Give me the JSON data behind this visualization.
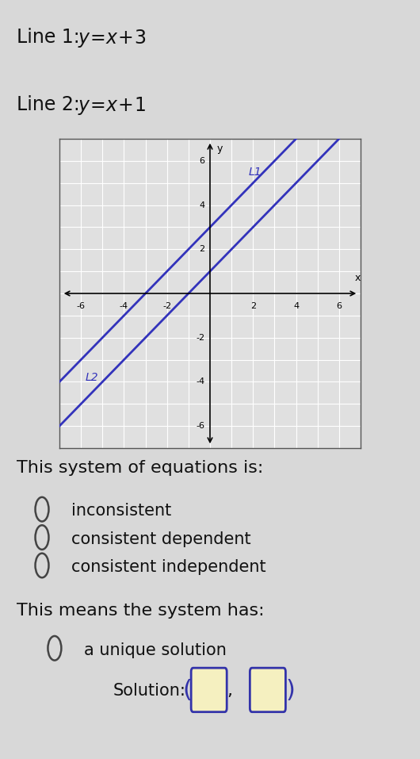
{
  "line1_text": "Line 1: ",
  "line1_eq": "y=x+3",
  "line2_text": "Line 2: ",
  "line2_eq": "y=x+1",
  "line1_slope": 1,
  "line1_intercept": 3,
  "line2_slope": 1,
  "line2_intercept": 1,
  "line_color": "#3333bb",
  "graph_label_L1": "L1",
  "graph_label_L2": "L2",
  "x_axis_label": "x",
  "y_axis_label": "y",
  "xlim": [
    -7,
    7
  ],
  "ylim": [
    -7,
    7
  ],
  "x_ticks": [
    -6,
    -4,
    -2,
    2,
    4,
    6
  ],
  "y_ticks": [
    -6,
    -4,
    -2,
    2,
    4,
    6
  ],
  "graph_bg_color": "#e0e0e0",
  "grid_color": "#ffffff",
  "system_label": "This system of equations is:",
  "options_system": [
    "inconsistent",
    "consistent dependent",
    "consistent independent"
  ],
  "system_label2": "This means the system has:",
  "options_system2": [
    "a unique solution"
  ],
  "solution_label": "Solution:",
  "bg_page": "#d8d8d8",
  "text_color": "#111111",
  "box_fill": "#f5f0c0",
  "box_border": "#3333aa"
}
